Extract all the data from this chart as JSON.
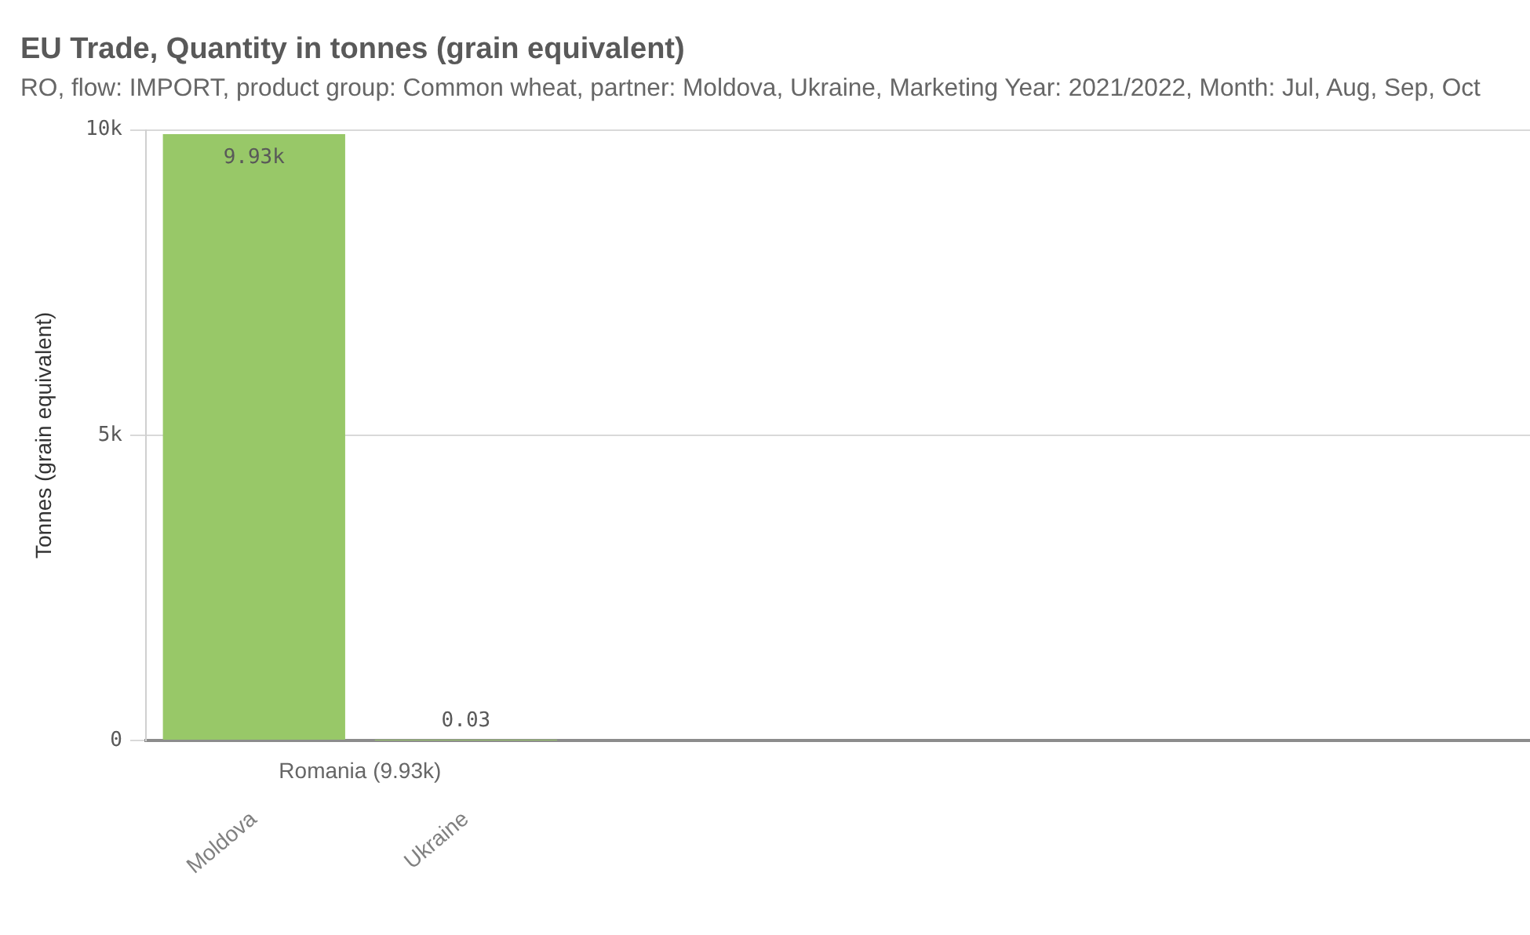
{
  "chart_data": {
    "type": "bar",
    "title": "EU Trade, Quantity in tonnes (grain equivalent)",
    "subtitle": "RO, flow: IMPORT, product group: Common wheat, partner: Moldova, Ukraine, Marketing Year: 2021/2022, Month: Jul, Aug, Sep, Oct",
    "ylabel": "Tonnes (grain equivalent)",
    "categories": [
      "Moldova",
      "Ukraine"
    ],
    "values": [
      9930,
      0.03
    ],
    "value_labels": [
      "9.93k",
      "0.03"
    ],
    "color": "#98c868",
    "ylim": [
      0,
      10000
    ],
    "yticks": [
      {
        "value": 0,
        "label": "0"
      },
      {
        "value": 5000,
        "label": "5k"
      },
      {
        "value": 10000,
        "label": "10k"
      }
    ],
    "grid": "y",
    "annotations": [
      "Romania (9.93k)"
    ]
  }
}
